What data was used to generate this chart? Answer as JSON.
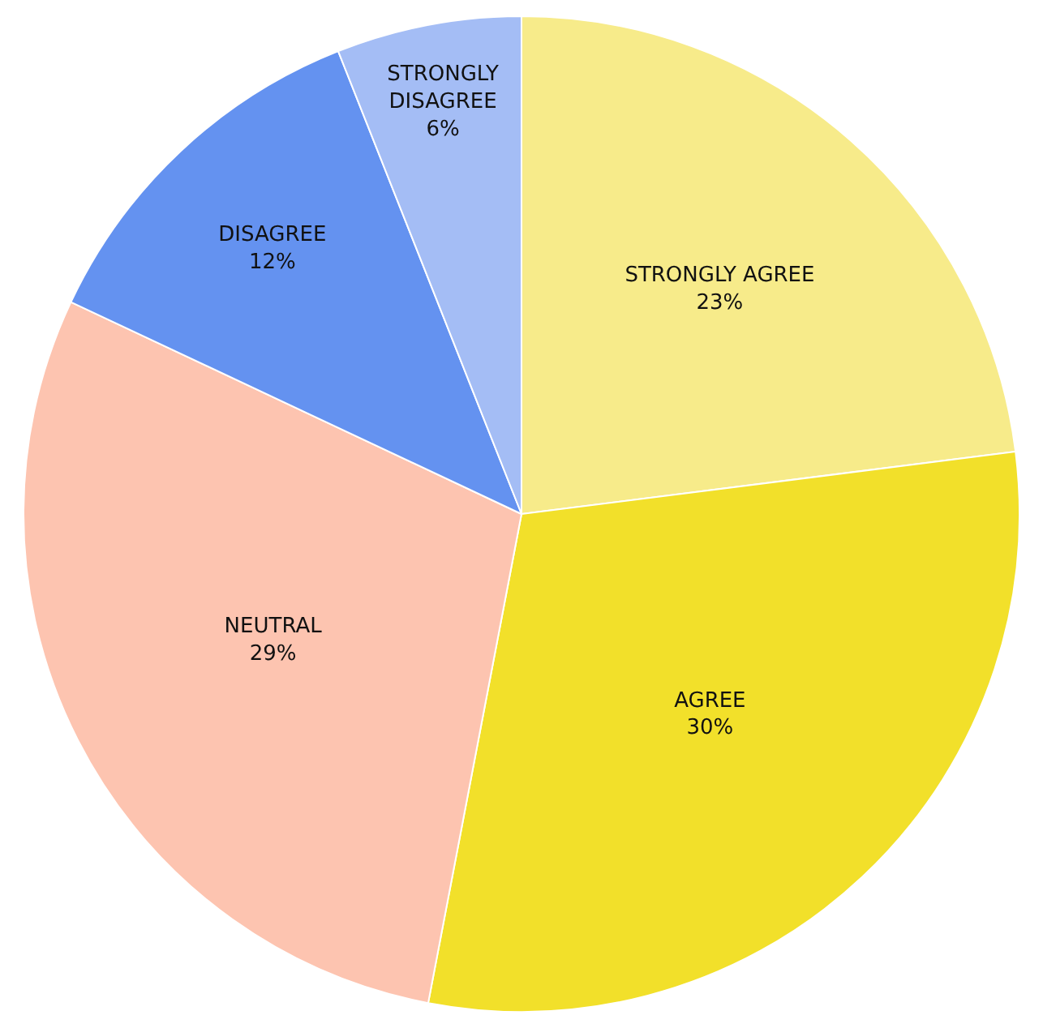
{
  "chart_data": {
    "type": "pie",
    "categories": [
      "STRONGLY AGREE",
      "AGREE",
      "NEUTRAL",
      "DISAGREE",
      "STRONGLY DISAGREE"
    ],
    "values": [
      23,
      30,
      29,
      12,
      6
    ],
    "value_labels": [
      "23%",
      "30%",
      "29%",
      "12%",
      "6%"
    ],
    "colors": [
      "#f7eb8a",
      "#f2e02a",
      "#fdc4b0",
      "#6492f0",
      "#a4bdf5"
    ],
    "legend": false
  }
}
